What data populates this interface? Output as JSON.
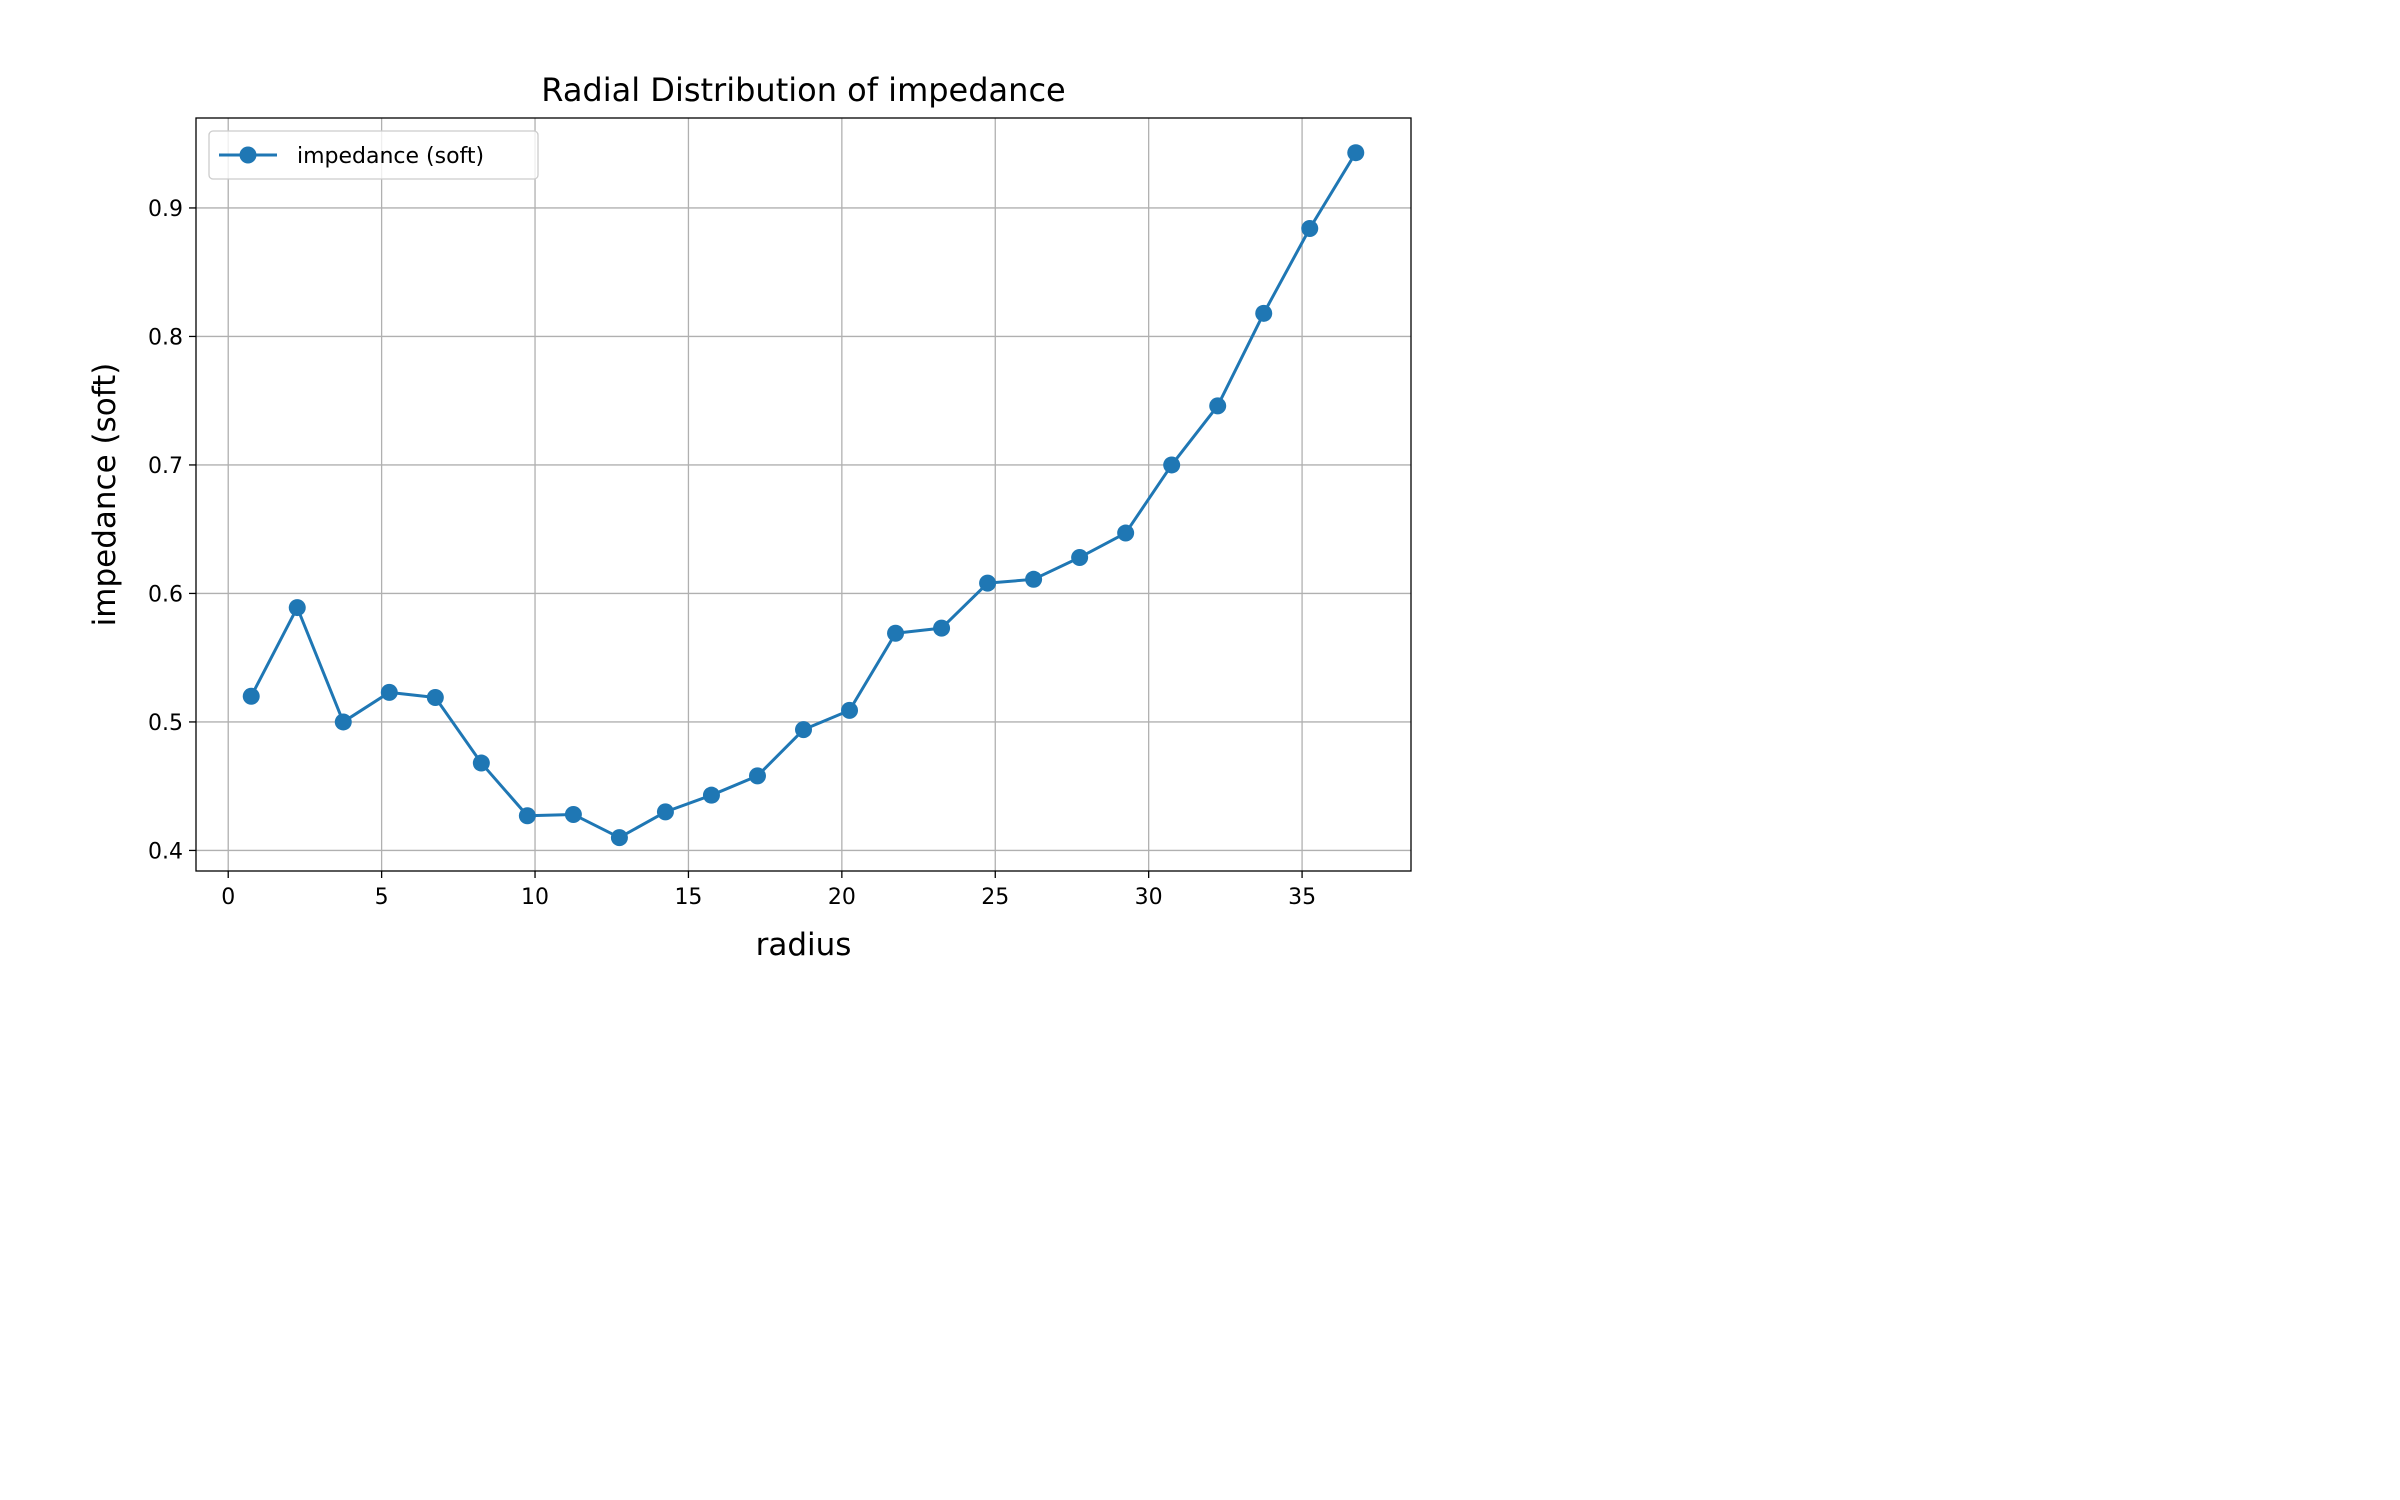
{
  "chart_data": {
    "type": "line",
    "title": "Radial Distribution of impedance",
    "xlabel": "radius",
    "ylabel": "impedance (soft)",
    "xlim": [
      -1.05,
      38.55
    ],
    "ylim": [
      0.384,
      0.97
    ],
    "xticks": [
      0,
      5,
      10,
      15,
      20,
      25,
      30,
      35
    ],
    "yticks": [
      0.4,
      0.5,
      0.6,
      0.7,
      0.8,
      0.9
    ],
    "xtick_labels": [
      "0",
      "5",
      "10",
      "15",
      "20",
      "25",
      "30",
      "35"
    ],
    "ytick_labels": [
      "0.4",
      "0.5",
      "0.6",
      "0.7",
      "0.8",
      "0.9"
    ],
    "grid": true,
    "legend_position": "upper left",
    "series": [
      {
        "name": "impedance (soft)",
        "color": "#1f77b4",
        "marker": "circle",
        "x": [
          0.75,
          2.25,
          3.75,
          5.25,
          6.75,
          8.25,
          9.75,
          11.25,
          12.75,
          14.25,
          15.75,
          17.25,
          18.75,
          20.25,
          21.75,
          23.25,
          24.75,
          26.25,
          27.75,
          29.25,
          30.75,
          32.25,
          33.75,
          35.25,
          36.75
        ],
        "y": [
          0.52,
          0.589,
          0.5,
          0.523,
          0.519,
          0.468,
          0.427,
          0.428,
          0.41,
          0.43,
          0.443,
          0.458,
          0.494,
          0.509,
          0.569,
          0.573,
          0.608,
          0.611,
          0.628,
          0.647,
          0.7,
          0.746,
          0.818,
          0.884,
          0.943
        ]
      }
    ]
  }
}
